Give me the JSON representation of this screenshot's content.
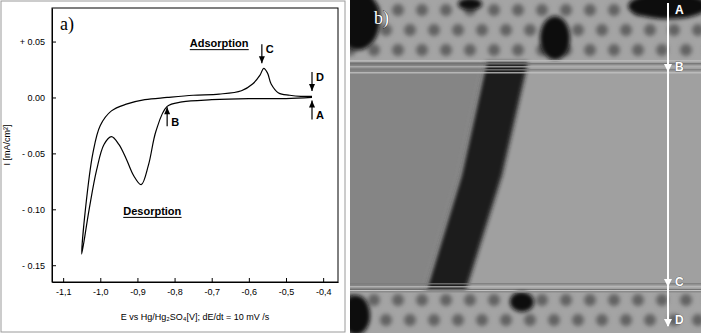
{
  "chart_data": [
    {
      "type": "line",
      "title": "a)",
      "x_label": "E vs Hg/Hg₂SO₄[V]; dE/dt = 10 mV /s",
      "y_label": "I [mA/cm²]",
      "xlim": [
        -1.13,
        -0.36
      ],
      "ylim": [
        -0.165,
        0.08
      ],
      "xticks": [
        {
          "value": -1.1,
          "label": "-1,1"
        },
        {
          "value": -1.0,
          "label": "-1,0"
        },
        {
          "value": -0.9,
          "label": "-0,9"
        },
        {
          "value": -0.8,
          "label": "-0,8"
        },
        {
          "value": -0.7,
          "label": "-0,7"
        },
        {
          "value": -0.6,
          "label": "-0,6"
        },
        {
          "value": -0.5,
          "label": "-0,5"
        },
        {
          "value": -0.4,
          "label": "-0,4"
        }
      ],
      "yticks": [
        {
          "value": 0.05,
          "label": "+ 0.05"
        },
        {
          "value": 0,
          "label": "0.00"
        },
        {
          "value": -0.05,
          "label": "- 0.05"
        },
        {
          "value": -0.1,
          "label": "- 0.10"
        },
        {
          "value": -0.15,
          "label": "- 0.15"
        }
      ],
      "series": [
        {
          "color": "#000000",
          "x": [
            -0.43,
            -0.5,
            -0.6,
            -0.7,
            -0.78,
            -0.82,
            -0.85,
            -0.87,
            -0.89,
            -0.91,
            -0.93,
            -0.95,
            -0.97,
            -0.99,
            -1.01,
            -1.03,
            -1.05,
            -1.04,
            -1.02,
            -1.0,
            -0.97,
            -0.93,
            -0.88,
            -0.82,
            -0.75,
            -0.68,
            -0.62,
            -0.59,
            -0.57,
            -0.56,
            -0.55,
            -0.54,
            -0.52,
            -0.49,
            -0.46,
            -0.43
          ],
          "values": [
            0,
            -0.001,
            -0.001,
            -0.002,
            -0.004,
            -0.008,
            -0.03,
            -0.06,
            -0.078,
            -0.07,
            -0.055,
            -0.042,
            -0.035,
            -0.042,
            -0.065,
            -0.1,
            -0.14,
            -0.1,
            -0.05,
            -0.025,
            -0.012,
            -0.006,
            -0.002,
            0,
            0.002,
            0.003,
            0.006,
            0.012,
            0.02,
            0.026,
            0.022,
            0.012,
            0.004,
            0.002,
            0.001,
            0.001
          ]
        }
      ],
      "annotations": [
        {
          "text": "Adsorption",
          "x": -0.68,
          "y": 0.045
        },
        {
          "text": "Desorption",
          "x": -0.86,
          "y": -0.105
        }
      ],
      "points": [
        {
          "label": "A",
          "x": -0.43,
          "y": 0
        },
        {
          "label": "B",
          "x": -0.82,
          "y": -0.006
        },
        {
          "label": "C",
          "x": -0.565,
          "y": 0.028
        },
        {
          "label": "D",
          "x": -0.43,
          "y": 0.003
        }
      ]
    },
    {
      "type": "image",
      "title": "b)",
      "labels": [
        "A",
        "B",
        "C",
        "D"
      ]
    }
  ]
}
